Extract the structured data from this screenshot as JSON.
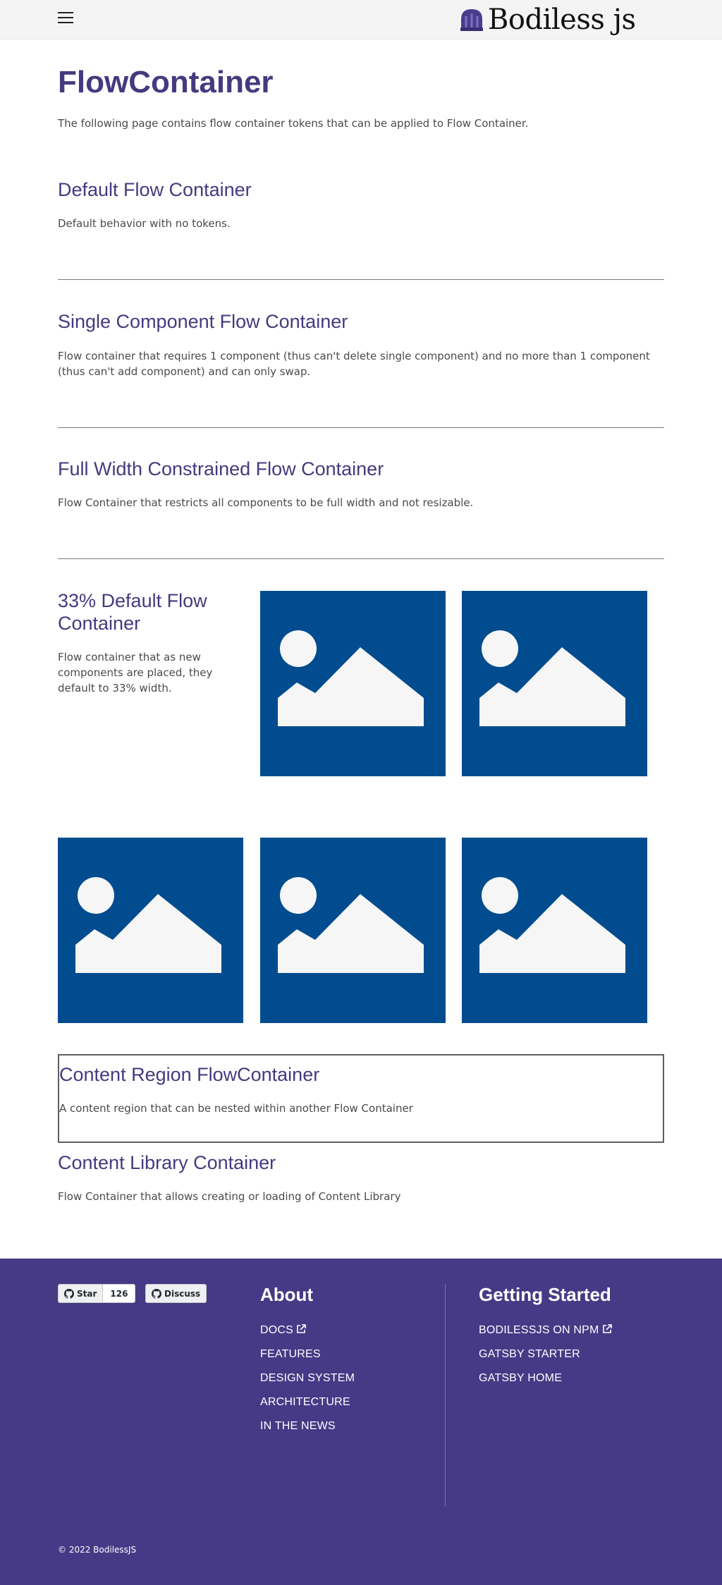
{
  "header": {
    "logo_text": "Bodiless js",
    "menu_icon": "hamburger-menu-icon",
    "logo_icon": "bodiless-beanie-logo-icon"
  },
  "page": {
    "title": "FlowContainer",
    "intro": "The following page contains flow container tokens that can be applied to Flow Container."
  },
  "sections": {
    "default": {
      "title": "Default Flow Container",
      "desc": "Default behavior with no tokens."
    },
    "single": {
      "title": "Single Component Flow Container",
      "desc": "Flow container that requires 1 component (thus can't delete single component) and no more than 1 component (thus can't add component) and can only swap."
    },
    "fullwidth": {
      "title": "Full Width Constrained Flow Container",
      "desc": "Flow Container that restricts all components to be full width and not resizable."
    },
    "third": {
      "title": "33% Default Flow Container",
      "desc": "Flow container that as new components are placed, they default to 33% width.",
      "tile_icon": "image-placeholder-icon"
    },
    "region": {
      "title": "Content Region FlowContainer",
      "desc": "A content region that can be nested within another Flow Container"
    },
    "library": {
      "title": "Content Library Container",
      "desc": "Flow Container that allows creating or loading of Content Library"
    }
  },
  "colors": {
    "brand_purple": "#47397f",
    "footer_bg": "#463a86",
    "tile_blue": "#004c8f",
    "tile_graphic": "#f6f6f6"
  },
  "footer": {
    "github": {
      "star_label": "Star",
      "star_count": "126",
      "discuss_label": "Discuss",
      "icon": "github-icon"
    },
    "about": {
      "heading": "About",
      "links": [
        "DOCS",
        "FEATURES",
        "DESIGN SYSTEM",
        "ARCHITECTURE",
        "IN THE NEWS"
      ]
    },
    "getting_started": {
      "heading": "Getting Started",
      "links": [
        "BODILESSJS ON NPM",
        "GATSBY STARTER",
        "GATSBY HOME"
      ]
    },
    "external_link_icon": "external-link-icon",
    "copyright": "©  2022 BodilessJS"
  }
}
